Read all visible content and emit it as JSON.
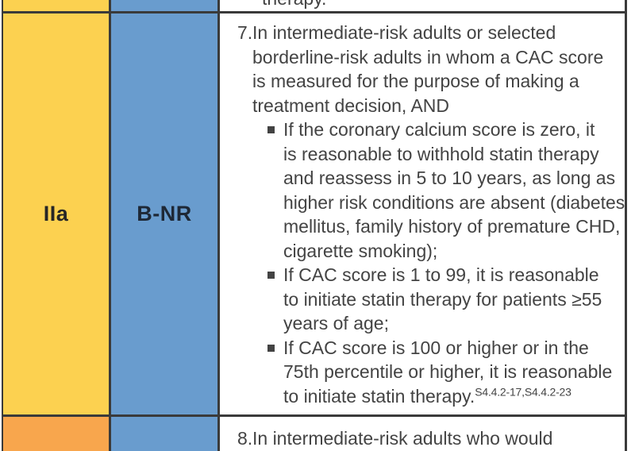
{
  "colors": {
    "cor_iia_yellow": "#FCD150",
    "cor_iib_orange": "#F8A64D",
    "loe_blue": "#699CCE",
    "grid_line": "#3A3A3A",
    "body_text": "#434343",
    "cor_label_text": "#262626",
    "loe_label_text": "#1E2836"
  },
  "table": {
    "rows": [
      {
        "kind": "partial-top",
        "cor_label": "",
        "loe_label": "",
        "recommendation_fragment": "therapy."
      },
      {
        "kind": "recommendation",
        "cor_label": "IIa",
        "loe_label": "B-NR",
        "recommendation": {
          "number": "7.",
          "intro_lines": [
            "In intermediate-risk adults or selected",
            "borderline-risk adults in whom a CAC score",
            "is measured for the purpose of making a",
            "treatment decision, AND"
          ],
          "bullets": [
            {
              "lines": [
                "If the coronary calcium score is zero, it",
                "is reasonable to withhold statin therapy",
                "and reassess in 5 to 10 years, as long as",
                "higher risk conditions are absent (diabetes",
                "mellitus, family history of premature CHD,",
                "cigarette smoking);"
              ]
            },
            {
              "lines": [
                "If CAC score is 1 to 99, it is reasonable",
                "to initiate statin therapy for patients ≥55",
                "years of age;"
              ]
            },
            {
              "lines": [
                "If CAC score is 100 or higher or in the",
                "75th percentile or higher, it is reasonable",
                "to initiate statin therapy."
              ],
              "superscript": "S4.4.2-17,S4.4.2-23"
            }
          ]
        }
      },
      {
        "kind": "partial-bottom",
        "cor_label": "",
        "loe_label": "",
        "recommendation": {
          "number": "8.",
          "intro_lines": [
            "In intermediate-risk adults who would"
          ]
        }
      }
    ]
  }
}
